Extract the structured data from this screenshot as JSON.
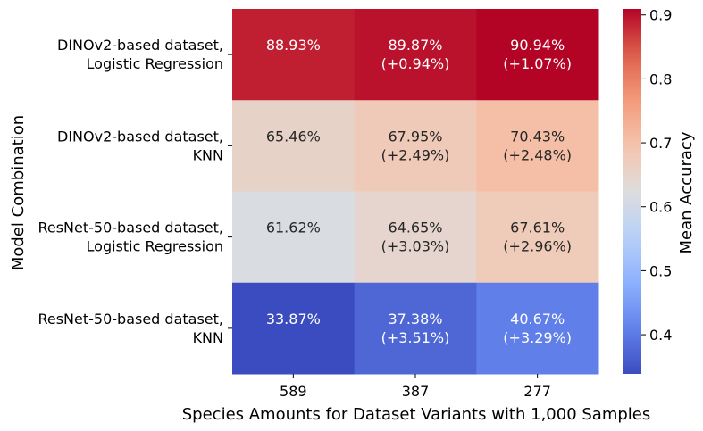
{
  "chart_data": {
    "type": "heatmap",
    "xlabel": "Species Amounts for Dataset Variants with 1,000 Samples",
    "ylabel": "Model Combination",
    "x_categories": [
      "589",
      "387",
      "277"
    ],
    "y_categories": [
      [
        "DINOv2-based dataset,",
        "Logistic Regression"
      ],
      [
        "DINOv2-based dataset,",
        "KNN"
      ],
      [
        "ResNet-50-based dataset,",
        "Logistic Regression"
      ],
      [
        "ResNet-50-based dataset,",
        "KNN"
      ]
    ],
    "values": [
      [
        0.8893,
        0.8987,
        0.9094
      ],
      [
        0.6546,
        0.6795,
        0.7043
      ],
      [
        0.6162,
        0.6465,
        0.6761
      ],
      [
        0.3387,
        0.3738,
        0.4067
      ]
    ],
    "cell_labels": [
      [
        [
          "88.93%"
        ],
        [
          "89.87%",
          "(+0.94%)"
        ],
        [
          "90.94%",
          "(+1.07%)"
        ]
      ],
      [
        [
          "65.46%"
        ],
        [
          "67.95%",
          "(+2.49%)"
        ],
        [
          "70.43%",
          "(+2.48%)"
        ]
      ],
      [
        [
          "61.62%"
        ],
        [
          "64.65%",
          "(+3.03%)"
        ],
        [
          "67.61%",
          "(+2.96%)"
        ]
      ],
      [
        [
          "33.87%"
        ],
        [
          "37.38%",
          "(+3.51%)"
        ],
        [
          "40.67%",
          "(+3.29%)"
        ]
      ]
    ],
    "colorbar": {
      "label": "Mean Accuracy",
      "range": [
        0.3387,
        0.9094
      ],
      "ticks": [
        0.4,
        0.5,
        0.6,
        0.7,
        0.8,
        0.9
      ],
      "tick_labels": [
        "0.4",
        "0.5",
        "0.6",
        "0.7",
        "0.8",
        "0.9"
      ],
      "colormap": "coolwarm"
    }
  }
}
